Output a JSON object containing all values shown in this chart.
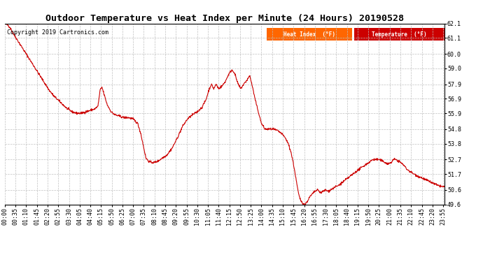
{
  "title": "Outdoor Temperature vs Heat Index per Minute (24 Hours) 20190528",
  "copyright": "Copyright 2019 Cartronics.com",
  "background_color": "#ffffff",
  "plot_bg_color": "#ffffff",
  "grid_color": "#c0c0c0",
  "line_color": "#cc0000",
  "line_width": 0.8,
  "ylim": [
    49.6,
    62.1
  ],
  "yticks": [
    49.6,
    50.6,
    51.7,
    52.7,
    53.8,
    54.8,
    55.9,
    56.9,
    57.9,
    59.0,
    60.0,
    61.1,
    62.1
  ],
  "legend_heat_index_bg": "#ff6600",
  "legend_temp_bg": "#cc0000",
  "legend_heat_index_text": "Heat Index  (°F)",
  "legend_temp_text": "Temperature  (°F)",
  "title_fontsize": 9.5,
  "tick_fontsize": 6,
  "copyright_fontsize": 6,
  "xtick_interval": 35,
  "keypoints": [
    [
      0,
      62.1
    ],
    [
      10,
      62.0
    ],
    [
      18,
      61.8
    ],
    [
      25,
      61.5
    ],
    [
      40,
      61.0
    ],
    [
      55,
      60.5
    ],
    [
      70,
      60.0
    ],
    [
      85,
      59.5
    ],
    [
      100,
      59.0
    ],
    [
      115,
      58.5
    ],
    [
      130,
      58.0
    ],
    [
      145,
      57.5
    ],
    [
      160,
      57.1
    ],
    [
      175,
      56.8
    ],
    [
      190,
      56.5
    ],
    [
      205,
      56.2
    ],
    [
      220,
      56.0
    ],
    [
      235,
      55.9
    ],
    [
      250,
      55.9
    ],
    [
      265,
      56.0
    ],
    [
      280,
      56.1
    ],
    [
      295,
      56.2
    ],
    [
      305,
      56.4
    ],
    [
      312,
      57.5
    ],
    [
      318,
      57.7
    ],
    [
      325,
      57.2
    ],
    [
      335,
      56.5
    ],
    [
      348,
      56.0
    ],
    [
      360,
      55.8
    ],
    [
      375,
      55.7
    ],
    [
      390,
      55.6
    ],
    [
      405,
      55.6
    ],
    [
      420,
      55.5
    ],
    [
      435,
      55.2
    ],
    [
      445,
      54.5
    ],
    [
      455,
      53.5
    ],
    [
      462,
      52.8
    ],
    [
      470,
      52.6
    ],
    [
      478,
      52.5
    ],
    [
      490,
      52.5
    ],
    [
      502,
      52.6
    ],
    [
      515,
      52.8
    ],
    [
      530,
      53.0
    ],
    [
      548,
      53.5
    ],
    [
      565,
      54.2
    ],
    [
      582,
      55.0
    ],
    [
      598,
      55.5
    ],
    [
      615,
      55.8
    ],
    [
      630,
      56.0
    ],
    [
      645,
      56.3
    ],
    [
      658,
      56.8
    ],
    [
      668,
      57.5
    ],
    [
      676,
      57.9
    ],
    [
      684,
      57.6
    ],
    [
      692,
      57.9
    ],
    [
      700,
      57.6
    ],
    [
      712,
      57.8
    ],
    [
      722,
      58.1
    ],
    [
      733,
      58.6
    ],
    [
      743,
      58.9
    ],
    [
      752,
      58.7
    ],
    [
      762,
      58.0
    ],
    [
      772,
      57.6
    ],
    [
      782,
      57.9
    ],
    [
      793,
      58.2
    ],
    [
      802,
      58.5
    ],
    [
      810,
      57.8
    ],
    [
      820,
      56.8
    ],
    [
      830,
      56.0
    ],
    [
      840,
      55.2
    ],
    [
      852,
      54.8
    ],
    [
      865,
      54.8
    ],
    [
      878,
      54.8
    ],
    [
      892,
      54.7
    ],
    [
      906,
      54.5
    ],
    [
      918,
      54.2
    ],
    [
      928,
      53.8
    ],
    [
      937,
      53.2
    ],
    [
      944,
      52.5
    ],
    [
      950,
      51.8
    ],
    [
      956,
      51.0
    ],
    [
      961,
      50.4
    ],
    [
      966,
      50.0
    ],
    [
      971,
      49.8
    ],
    [
      977,
      49.65
    ],
    [
      983,
      49.6
    ],
    [
      990,
      49.8
    ],
    [
      998,
      50.1
    ],
    [
      1006,
      50.3
    ],
    [
      1015,
      50.5
    ],
    [
      1025,
      50.6
    ],
    [
      1034,
      50.4
    ],
    [
      1042,
      50.5
    ],
    [
      1050,
      50.6
    ],
    [
      1058,
      50.5
    ],
    [
      1066,
      50.6
    ],
    [
      1074,
      50.7
    ],
    [
      1082,
      50.8
    ],
    [
      1092,
      50.9
    ],
    [
      1104,
      51.1
    ],
    [
      1116,
      51.3
    ],
    [
      1128,
      51.5
    ],
    [
      1140,
      51.7
    ],
    [
      1152,
      51.9
    ],
    [
      1165,
      52.1
    ],
    [
      1178,
      52.3
    ],
    [
      1192,
      52.5
    ],
    [
      1205,
      52.7
    ],
    [
      1215,
      52.7
    ],
    [
      1225,
      52.7
    ],
    [
      1235,
      52.6
    ],
    [
      1245,
      52.5
    ],
    [
      1255,
      52.4
    ],
    [
      1265,
      52.5
    ],
    [
      1272,
      52.7
    ],
    [
      1280,
      52.7
    ],
    [
      1288,
      52.6
    ],
    [
      1295,
      52.5
    ],
    [
      1302,
      52.4
    ],
    [
      1310,
      52.2
    ],
    [
      1318,
      52.0
    ],
    [
      1325,
      51.9
    ],
    [
      1332,
      51.8
    ],
    [
      1339,
      51.7
    ],
    [
      1348,
      51.6
    ],
    [
      1358,
      51.5
    ],
    [
      1368,
      51.4
    ],
    [
      1378,
      51.3
    ],
    [
      1388,
      51.2
    ],
    [
      1398,
      51.1
    ],
    [
      1408,
      51.0
    ],
    [
      1418,
      50.9
    ],
    [
      1428,
      50.85
    ],
    [
      1439,
      50.8
    ]
  ]
}
